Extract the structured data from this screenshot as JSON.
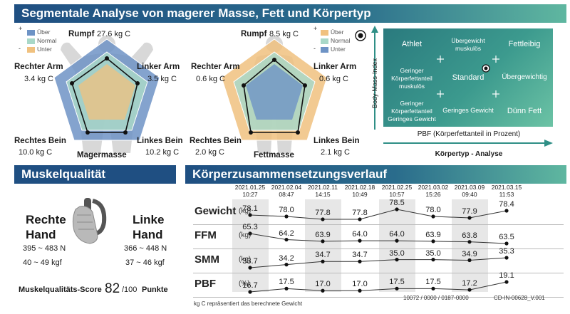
{
  "header": {
    "title": "Segmentale Analyse von magerer Masse, Fett und Körpertyp"
  },
  "legend": {
    "items": [
      "Über",
      "Normal",
      "Unter"
    ],
    "plus": "+",
    "minus": "-"
  },
  "lean": {
    "trunk_label": "Rumpf",
    "trunk_value": "27.6  kg C",
    "right_arm_label": "Rechter Arm",
    "right_arm_value": "3.4  kg C",
    "left_arm_label": "Linker Arm",
    "left_arm_value": "3.5  kg C",
    "right_leg_label": "Rechtes Bein",
    "right_leg_value": "10.0  kg C",
    "left_leg_label": "Linkes Bein",
    "left_leg_value": "10.2  kg C",
    "caption": "Magermasse"
  },
  "fat": {
    "trunk_label": "Rumpf",
    "trunk_value": "8.5  kg C",
    "right_arm_label": "Rechter Arm",
    "right_arm_value": "0.6  kg C",
    "left_arm_label": "Linker Arm",
    "left_arm_value": "0.6  kg C",
    "right_leg_label": "Rechtes Bein",
    "right_leg_value": "2.0  kg C",
    "left_leg_label": "Linkes Bein",
    "left_leg_value": "2.1  kg C",
    "caption": "Fettmasse"
  },
  "bodytype": {
    "cells": [
      "Athlet",
      "Übergewicht muskulös",
      "Fettleibig",
      "Geringer Körperfettanteil muskulös",
      "Standard",
      "Übergewichtig",
      "Geringer Körperfettanteil Geringes Gewicht",
      "Geringes Gewicht",
      "Dünn Fett"
    ],
    "y_axis": "Body-Mass-Index",
    "x_axis": "PBF (Körperfettanteil in Prozent)",
    "caption": "Körpertyp - Analyse",
    "marker_col": 1.35,
    "marker_row": 0.95
  },
  "muscle": {
    "title": "Muskelqualität",
    "right_hand": "Rechte Hand",
    "right_n": "395 ~ 483 N",
    "right_kgf": "40 ~ 49 kgf",
    "left_hand": "Linke Hand",
    "left_n": "366 ~ 448 N",
    "left_kgf": "37 ~ 46 kgf",
    "score_label": "Muskelqualitäts-Score",
    "score": "82",
    "score_max": "/100",
    "score_unit": "Punkte"
  },
  "history": {
    "title": "Körperzusammensetzungsverlauf",
    "dates": [
      [
        "2021.01.25",
        "10:27"
      ],
      [
        "2021.02.04",
        "08:47"
      ],
      [
        "2021.02.11",
        "14:15"
      ],
      [
        "2021.02.18",
        "10:49"
      ],
      [
        "2021.02.25",
        "10:57"
      ],
      [
        "2021.03.02",
        "15:26"
      ],
      [
        "2021.03.09",
        "09:40"
      ],
      [
        "2021.03.15",
        "11:53"
      ]
    ],
    "rows": [
      {
        "label": "Gewicht",
        "unit": "(kg)",
        "values": [
          "78.1",
          "78.0",
          "77.8",
          "77.8",
          "78.5",
          "78.0",
          "77.9",
          "78.4"
        ]
      },
      {
        "label": "FFM",
        "unit": "(kg)",
        "values": [
          "65.3",
          "64.2",
          "63.9",
          "64.0",
          "64.0",
          "63.9",
          "63.8",
          "63.5"
        ]
      },
      {
        "label": "SMM",
        "unit": "(kg)",
        "values": [
          "33.7",
          "34.2",
          "34.7",
          "34.7",
          "35.0",
          "35.0",
          "34.9",
          "35.3"
        ]
      },
      {
        "label": "PBF",
        "unit": "(%)",
        "values": [
          "16.7",
          "17.5",
          "17.0",
          "17.0",
          "17.5",
          "17.5",
          "17.2",
          "19.1"
        ]
      }
    ]
  },
  "footer": {
    "note": "kg C repräsentiert das berechnete Gewicht",
    "code": "10072 / 0000 / 0187-0000",
    "id": "CD-IN-00628_V.001"
  },
  "colors": {
    "over": "#6e93c5",
    "normal": "#a9d8c8",
    "under": "#f0c17f",
    "accent": "#1f4f82"
  }
}
